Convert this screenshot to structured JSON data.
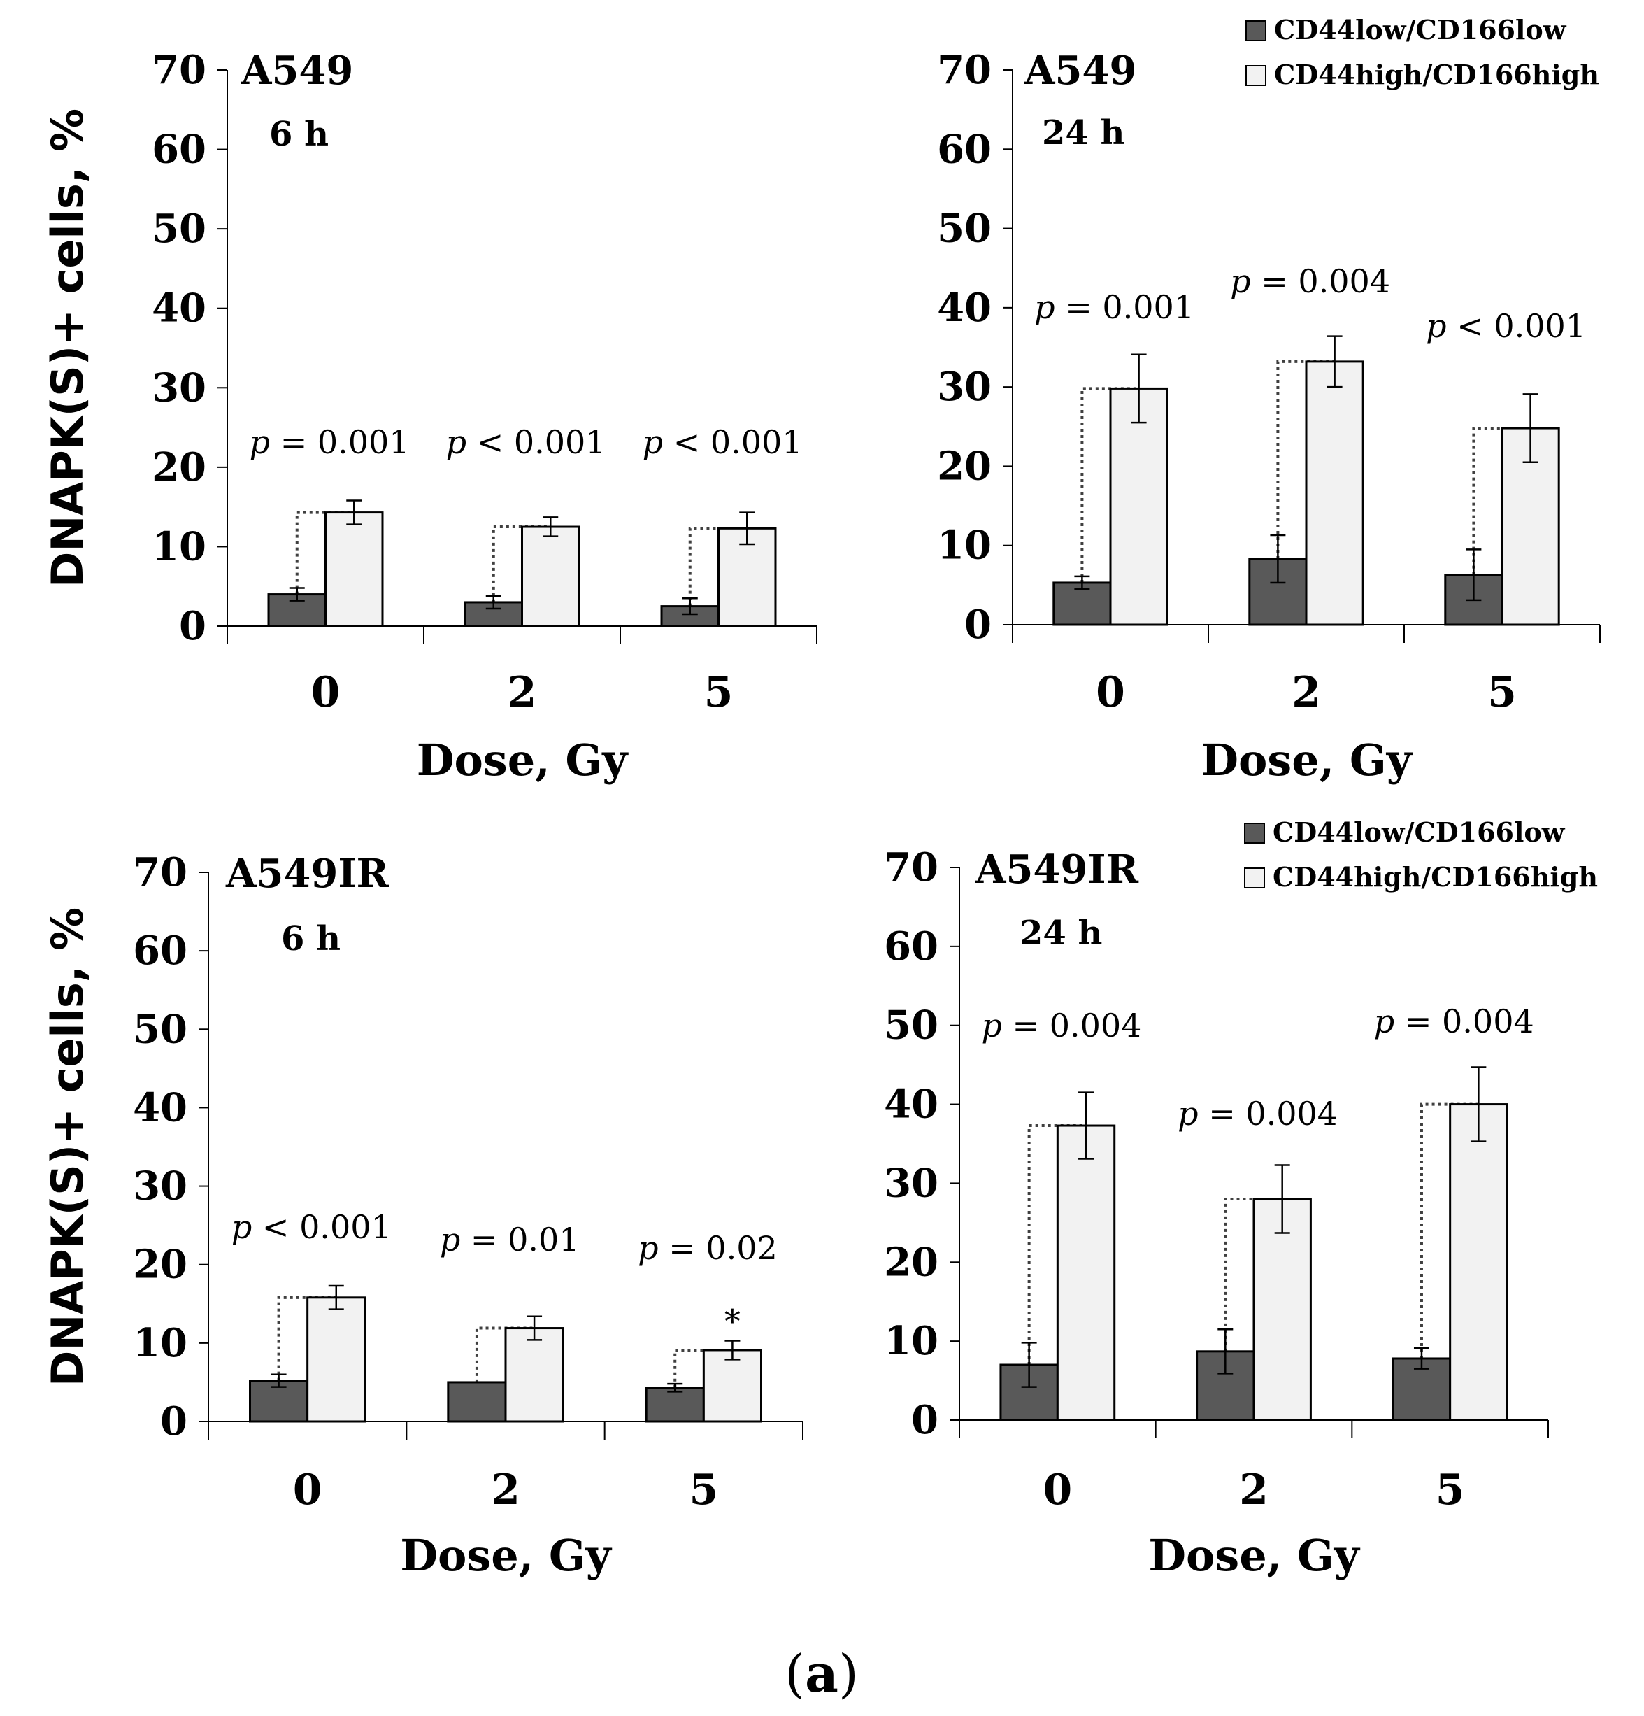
{
  "colors": {
    "low": "#595959",
    "high": "#f2f2f2",
    "outline": "#000000",
    "connector": "#404040"
  },
  "caption": {
    "open": "(",
    "letter": "a",
    "close": ")"
  },
  "chart_data": [
    {
      "type": "bar",
      "cell_line": "A549",
      "time": "6 h",
      "ylabel": "DNAPK(S)+ cells, %",
      "xlabel": "Dose, Gy",
      "ylim": [
        0,
        70
      ],
      "yticks": [
        "0",
        "10",
        "20",
        "30",
        "40",
        "50",
        "60",
        "70"
      ],
      "categories": [
        "0",
        "2",
        "5"
      ],
      "series": [
        {
          "name": "CD44low/CD166low",
          "values": [
            4.0,
            3.0,
            2.5
          ],
          "errors": [
            0.8,
            0.8,
            1.0
          ]
        },
        {
          "name": "CD44high/CD166high",
          "values": [
            14.3,
            12.5,
            12.3
          ],
          "errors": [
            1.5,
            1.2,
            2.0
          ]
        }
      ],
      "annotations": [
        {
          "prefix": "p",
          "text": " = 0.001"
        },
        {
          "prefix": "p",
          "text": " < 0.001"
        },
        {
          "prefix": "p",
          "text": " < 0.001"
        }
      ],
      "legend": []
    },
    {
      "type": "bar",
      "cell_line": "A549",
      "time": "24 h",
      "ylabel": "",
      "xlabel": "Dose, Gy",
      "ylim": [
        0,
        70
      ],
      "yticks": [
        "0",
        "10",
        "20",
        "30",
        "40",
        "50",
        "60",
        "70"
      ],
      "categories": [
        "0",
        "2",
        "5"
      ],
      "series": [
        {
          "name": "CD44low/CD166low",
          "values": [
            5.3,
            8.3,
            6.3
          ],
          "errors": [
            0.8,
            3.0,
            3.2
          ]
        },
        {
          "name": "CD44high/CD166high",
          "values": [
            29.8,
            33.2,
            24.8
          ],
          "errors": [
            4.3,
            3.2,
            4.3
          ]
        }
      ],
      "annotations": [
        {
          "prefix": "p",
          "text": " = 0.001"
        },
        {
          "prefix": "p",
          "text": " = 0.004"
        },
        {
          "prefix": "p",
          "text": " < 0.001"
        }
      ],
      "legend": [
        "CD44low/CD166low",
        "CD44high/CD166high"
      ]
    },
    {
      "type": "bar",
      "cell_line": "A549IR",
      "time": "6 h",
      "ylabel": "DNAPK(S)+ cells, %",
      "xlabel": "Dose, Gy",
      "ylim": [
        0,
        70
      ],
      "yticks": [
        "0",
        "10",
        "20",
        "30",
        "40",
        "50",
        "60",
        "70"
      ],
      "categories": [
        "0",
        "2",
        "5"
      ],
      "series": [
        {
          "name": "CD44low/CD166low",
          "values": [
            5.2,
            5.0,
            4.3
          ],
          "errors": [
            0.8,
            0.0,
            0.5
          ]
        },
        {
          "name": "CD44high/CD166high",
          "values": [
            15.8,
            11.9,
            9.1
          ],
          "errors": [
            1.5,
            1.5,
            1.2
          ]
        }
      ],
      "annotations": [
        {
          "prefix": "p",
          "text": " < 0.001"
        },
        {
          "prefix": "p",
          "text": " = 0.01"
        },
        {
          "prefix": "p",
          "text": " = 0.02"
        }
      ],
      "asterisks": [
        "",
        "",
        "*"
      ],
      "legend": []
    },
    {
      "type": "bar",
      "cell_line": "A549IR",
      "time": "24 h",
      "ylabel": "",
      "xlabel": "Dose, Gy",
      "ylim": [
        0,
        70
      ],
      "yticks": [
        "0",
        "10",
        "20",
        "30",
        "40",
        "50",
        "60",
        "70"
      ],
      "categories": [
        "0",
        "2",
        "5"
      ],
      "series": [
        {
          "name": "CD44low/CD166low",
          "values": [
            7.0,
            8.7,
            7.8
          ],
          "errors": [
            2.8,
            2.8,
            1.3
          ]
        },
        {
          "name": "CD44high/CD166high",
          "values": [
            37.3,
            28.0,
            40.0
          ],
          "errors": [
            4.2,
            4.3,
            4.7
          ]
        }
      ],
      "annotations": [
        {
          "prefix": "p",
          "text": " = 0.004"
        },
        {
          "prefix": "p",
          "text": " = 0.004"
        },
        {
          "prefix": "p",
          "text": " = 0.004"
        }
      ],
      "legend": [
        "CD44low/CD166low",
        "CD44high/CD166high"
      ]
    }
  ]
}
